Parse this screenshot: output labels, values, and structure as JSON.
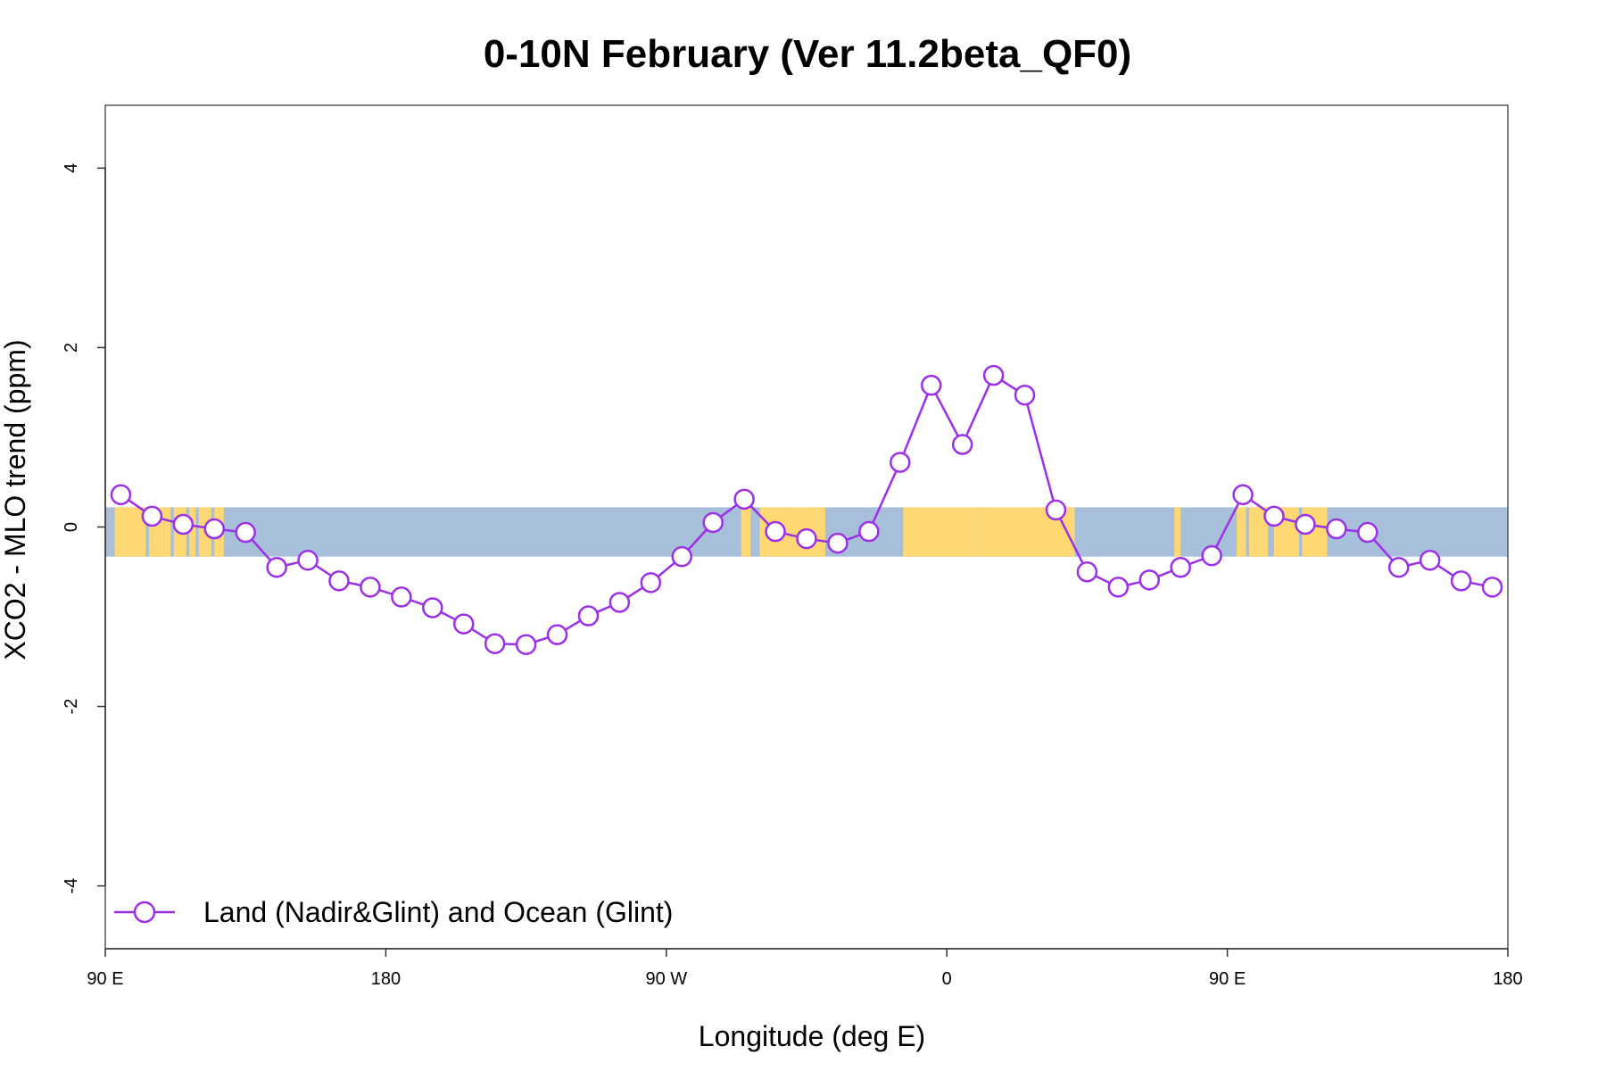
{
  "chart_data": {
    "type": "line",
    "title": "0-10N February (Ver 11.2beta_QF0)",
    "xlabel": "Longitude (deg E)",
    "ylabel": "XCO2 - MLO trend (ppm)",
    "xlim": [
      90,
      540
    ],
    "ylim": [
      -4.7,
      4.7
    ],
    "x_ticks": [
      {
        "value": 90,
        "label": "90 E"
      },
      {
        "value": 180,
        "label": "180"
      },
      {
        "value": 270,
        "label": "90 W"
      },
      {
        "value": 360,
        "label": "0"
      },
      {
        "value": 450,
        "label": "90 E"
      },
      {
        "value": 540,
        "label": "180"
      }
    ],
    "y_ticks": [
      {
        "value": 4,
        "label": "4"
      },
      {
        "value": 2,
        "label": "2"
      },
      {
        "value": 0,
        "label": "0"
      },
      {
        "value": -2,
        "label": "-2"
      },
      {
        "value": -4,
        "label": "-4"
      }
    ],
    "grid": false,
    "background_band": {
      "y_range": [
        -0.33,
        0.22
      ],
      "ocean_color": "#a8bfdc",
      "land_color": "#fdd873"
    },
    "legend": {
      "position": "bottom-left"
    },
    "series": [
      {
        "name": "Land (Nadir&Glint) and Ocean (Glint)",
        "color": "#9b30e8",
        "marker": "open-circle",
        "x": [
          95,
          105,
          115,
          125,
          135,
          145,
          155,
          165,
          175,
          185,
          195,
          205,
          215,
          225,
          235,
          245,
          255,
          265,
          275,
          285,
          295,
          305,
          315,
          325,
          335,
          345,
          355,
          365,
          375,
          385,
          395,
          405,
          415,
          425,
          435,
          445,
          455,
          465,
          475,
          485,
          495,
          505,
          515,
          525,
          535
        ],
        "values": [
          0.36,
          0.12,
          0.03,
          -0.02,
          -0.06,
          -0.45,
          -0.37,
          -0.6,
          -0.67,
          -0.78,
          -0.9,
          -1.08,
          -1.3,
          -1.31,
          -1.2,
          -0.99,
          -0.84,
          -0.62,
          -0.33,
          0.05,
          0.31,
          -0.05,
          -0.13,
          -0.18,
          -0.05,
          0.72,
          1.58,
          0.92,
          1.69,
          1.47,
          0.19,
          -0.5,
          -0.67,
          -0.59,
          -0.45,
          -0.32,
          0.36,
          0.12,
          0.03,
          -0.02,
          -0.06,
          -0.45,
          -0.37,
          -0.6,
          -0.67
        ]
      }
    ]
  }
}
